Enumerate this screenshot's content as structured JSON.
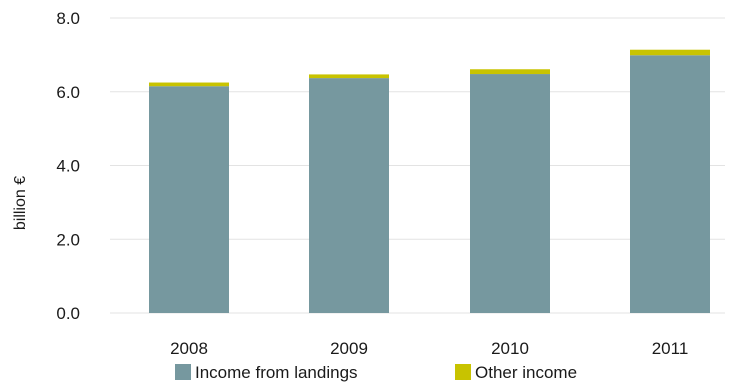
{
  "chart_data": {
    "type": "bar",
    "stacked": true,
    "categories": [
      "2008",
      "2009",
      "2010",
      "2011"
    ],
    "series": [
      {
        "name": "Income from landings",
        "values": [
          6.15,
          6.37,
          6.48,
          6.99
        ],
        "color": "#76989f"
      },
      {
        "name": "Other income",
        "values": [
          0.1,
          0.1,
          0.13,
          0.15
        ],
        "color": "#c8c300"
      }
    ],
    "title": "",
    "xlabel": "",
    "ylabel": "billion €",
    "ylim": [
      0,
      8
    ],
    "yticks": [
      "0.0",
      "2.0",
      "4.0",
      "6.0",
      "8.0"
    ],
    "grid": true,
    "gridline_color": "#e3e3e3",
    "legend_position": "bottom"
  }
}
